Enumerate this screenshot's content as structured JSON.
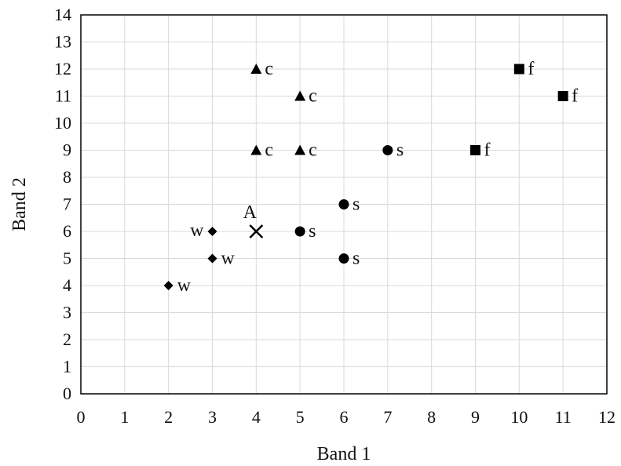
{
  "chart_data": {
    "type": "scatter",
    "xlabel": "Band 1",
    "ylabel": "Band 2",
    "xlim": [
      0,
      12
    ],
    "ylim": [
      0,
      14
    ],
    "xticks": [
      0,
      1,
      2,
      3,
      4,
      5,
      6,
      7,
      8,
      9,
      10,
      11,
      12
    ],
    "yticks": [
      0,
      1,
      2,
      3,
      4,
      5,
      6,
      7,
      8,
      9,
      10,
      11,
      12,
      13,
      14
    ],
    "grid": true,
    "series": [
      {
        "marker": "diamond",
        "label": "w",
        "points": [
          {
            "x": 3,
            "y": 6,
            "label_side": "left"
          },
          {
            "x": 3,
            "y": 5,
            "label_side": "right"
          },
          {
            "x": 2,
            "y": 4,
            "label_side": "right"
          }
        ]
      },
      {
        "marker": "triangle",
        "label": "c",
        "points": [
          {
            "x": 4,
            "y": 12,
            "label_side": "right"
          },
          {
            "x": 5,
            "y": 11,
            "label_side": "right"
          },
          {
            "x": 4,
            "y": 9,
            "label_side": "right"
          },
          {
            "x": 5,
            "y": 9,
            "label_side": "right"
          }
        ]
      },
      {
        "marker": "circle",
        "label": "s",
        "points": [
          {
            "x": 7,
            "y": 9,
            "label_side": "right"
          },
          {
            "x": 6,
            "y": 7,
            "label_side": "right"
          },
          {
            "x": 5,
            "y": 6,
            "label_side": "right"
          },
          {
            "x": 6,
            "y": 5,
            "label_side": "right"
          }
        ]
      },
      {
        "marker": "square",
        "label": "f",
        "points": [
          {
            "x": 10,
            "y": 12,
            "label_side": "right"
          },
          {
            "x": 11,
            "y": 11,
            "label_side": "right"
          },
          {
            "x": 9,
            "y": 9,
            "label_side": "right"
          }
        ]
      },
      {
        "marker": "x",
        "label": "A",
        "points": [
          {
            "x": 4,
            "y": 6,
            "label_side": "above"
          }
        ]
      }
    ]
  }
}
